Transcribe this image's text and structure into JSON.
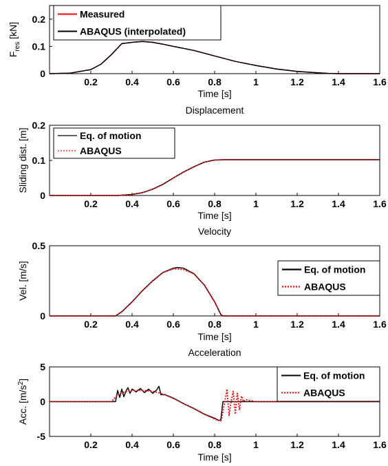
{
  "chart_data": [
    {
      "type": "line",
      "title": "",
      "xlabel": "Time [s]",
      "ylabel": "F_res [kN]",
      "ylabel_main": "F",
      "ylabel_sub": "res",
      "ylabel_unit": " [kN]",
      "xlim": [
        0,
        1.6
      ],
      "ylim": [
        0,
        0.25
      ],
      "xticks": [
        "0.2",
        "0.4",
        "0.6",
        "0.8",
        "1",
        "1.2",
        "1.4",
        "1.6"
      ],
      "yticks": [
        {
          "v": 0,
          "label": "0"
        },
        {
          "v": 0.1,
          "label": "0.1"
        },
        {
          "v": 0.2,
          "label": "0.2"
        }
      ],
      "grid": false,
      "legend_position": "top-left",
      "series": [
        {
          "name": "Measured",
          "color": "#ff0000",
          "style": "solid",
          "x": [
            0,
            0.1,
            0.2,
            0.25,
            0.3,
            0.35,
            0.4,
            0.45,
            0.5,
            0.55,
            0.6,
            0.7,
            0.8,
            0.9,
            1.0,
            1.1,
            1.2,
            1.3,
            1.35,
            1.4,
            1.6
          ],
          "y": [
            0,
            0.002,
            0.015,
            0.035,
            0.07,
            0.11,
            0.115,
            0.118,
            0.115,
            0.108,
            0.1,
            0.085,
            0.065,
            0.045,
            0.03,
            0.017,
            0.008,
            0.003,
            0.001,
            0,
            0
          ]
        },
        {
          "name": "ABAQUS (interpolated)",
          "color": "#000000",
          "style": "solid",
          "x": [
            0,
            0.1,
            0.2,
            0.25,
            0.3,
            0.35,
            0.4,
            0.45,
            0.5,
            0.55,
            0.6,
            0.7,
            0.8,
            0.9,
            1.0,
            1.1,
            1.2,
            1.3,
            1.35,
            1.4,
            1.6
          ],
          "y": [
            0,
            0.002,
            0.015,
            0.035,
            0.07,
            0.11,
            0.115,
            0.118,
            0.115,
            0.108,
            0.1,
            0.085,
            0.065,
            0.045,
            0.03,
            0.017,
            0.008,
            0.003,
            0.001,
            0,
            0
          ]
        }
      ]
    },
    {
      "type": "line",
      "title": "Displacement",
      "xlabel": "Time [s]",
      "ylabel": "Sliding dist. [m]",
      "xlim": [
        0,
        1.6
      ],
      "ylim": [
        0,
        0.2
      ],
      "xticks": [
        "0.2",
        "0.4",
        "0.6",
        "0.8",
        "1",
        "1.2",
        "1.4",
        "1.6"
      ],
      "yticks": [
        {
          "v": 0,
          "label": "0"
        },
        {
          "v": 0.1,
          "label": "0.1"
        },
        {
          "v": 0.2,
          "label": "0.2"
        }
      ],
      "grid": false,
      "legend_position": "top-left",
      "series": [
        {
          "name": "Eq. of motion",
          "color": "#000000",
          "style": "solid",
          "x": [
            0,
            0.33,
            0.4,
            0.45,
            0.5,
            0.55,
            0.6,
            0.65,
            0.7,
            0.75,
            0.8,
            0.85,
            1.0,
            1.2,
            1.4,
            1.6
          ],
          "y": [
            0,
            0,
            0.003,
            0.008,
            0.018,
            0.032,
            0.05,
            0.067,
            0.082,
            0.095,
            0.101,
            0.102,
            0.102,
            0.102,
            0.102,
            0.102
          ]
        },
        {
          "name": "ABAQUS",
          "color": "#ff0000",
          "style": "dotted",
          "x": [
            0,
            0.33,
            0.4,
            0.45,
            0.5,
            0.55,
            0.6,
            0.65,
            0.7,
            0.75,
            0.8,
            0.85,
            1.0,
            1.2,
            1.4,
            1.6
          ],
          "y": [
            0,
            0,
            0.003,
            0.008,
            0.018,
            0.032,
            0.05,
            0.067,
            0.082,
            0.095,
            0.101,
            0.102,
            0.102,
            0.102,
            0.102,
            0.102
          ]
        }
      ]
    },
    {
      "type": "line",
      "title": "Velocity",
      "xlabel": "Time [s]",
      "ylabel": "Vel. [m/s]",
      "xlim": [
        0,
        1.6
      ],
      "ylim": [
        0,
        0.5
      ],
      "xticks": [
        "0.2",
        "0.4",
        "0.6",
        "0.8",
        "1",
        "1.2",
        "1.4",
        "1.6"
      ],
      "yticks": [
        {
          "v": 0,
          "label": "0"
        },
        {
          "v": 0.5,
          "label": "0.5"
        }
      ],
      "grid": false,
      "legend_position": "right",
      "series": [
        {
          "name": "Eq. of motion",
          "color": "#000000",
          "style": "solid",
          "x": [
            0,
            0.32,
            0.35,
            0.4,
            0.45,
            0.5,
            0.55,
            0.6,
            0.62,
            0.65,
            0.7,
            0.75,
            0.8,
            0.83,
            0.84,
            1.0,
            1.6
          ],
          "y": [
            0,
            0,
            0.03,
            0.1,
            0.18,
            0.25,
            0.31,
            0.34,
            0.345,
            0.34,
            0.3,
            0.22,
            0.1,
            0.01,
            0,
            0,
            0
          ]
        },
        {
          "name": "ABAQUS",
          "color": "#ff0000",
          "style": "dotted",
          "x": [
            0,
            0.32,
            0.35,
            0.4,
            0.45,
            0.5,
            0.55,
            0.6,
            0.62,
            0.65,
            0.7,
            0.75,
            0.8,
            0.83,
            0.84,
            1.0,
            1.6
          ],
          "y": [
            0,
            0,
            0.03,
            0.1,
            0.18,
            0.25,
            0.31,
            0.335,
            0.335,
            0.33,
            0.3,
            0.22,
            0.1,
            0.01,
            0,
            0,
            0
          ]
        }
      ]
    },
    {
      "type": "line",
      "title": "Acceleration",
      "xlabel": "Time [s]",
      "ylabel": "Acc. [m/s²]",
      "ylabel_main": "Acc. [m/s",
      "ylabel_sup": "2",
      "ylabel_end": "]",
      "xlim": [
        0,
        1.6
      ],
      "ylim": [
        -5,
        5
      ],
      "xticks": [
        "0.2",
        "0.4",
        "0.6",
        "0.8",
        "1",
        "1.2",
        "1.4",
        "1.6"
      ],
      "yticks": [
        {
          "v": -5,
          "label": "-5"
        },
        {
          "v": 0,
          "label": "0"
        },
        {
          "v": 5,
          "label": "5"
        }
      ],
      "grid": false,
      "legend_position": "top-right",
      "series": [
        {
          "name": "Eq. of motion",
          "color": "#000000",
          "style": "solid",
          "x": [
            0,
            0.32,
            0.33,
            0.34,
            0.35,
            0.36,
            0.37,
            0.38,
            0.39,
            0.4,
            0.42,
            0.44,
            0.46,
            0.48,
            0.5,
            0.52,
            0.53,
            0.54,
            0.56,
            0.6,
            0.65,
            0.7,
            0.75,
            0.8,
            0.82,
            0.83,
            0.84,
            1.6
          ],
          "y": [
            0,
            0,
            1.6,
            0.6,
            1.8,
            0.7,
            1.5,
            2.0,
            1.2,
            1.8,
            1.4,
            1.9,
            1.3,
            1.8,
            1.2,
            1.7,
            2.2,
            1.0,
            1.0,
            0.5,
            -0.3,
            -1.0,
            -1.8,
            -2.4,
            -2.7,
            -2.6,
            0,
            0
          ]
        },
        {
          "name": "ABAQUS",
          "color": "#ff0000",
          "style": "dotted",
          "x": [
            0,
            0.3,
            0.33,
            0.35,
            0.4,
            0.45,
            0.5,
            0.55,
            0.6,
            0.65,
            0.7,
            0.75,
            0.8,
            0.83,
            0.84,
            0.86,
            0.87,
            0.88,
            0.89,
            0.9,
            0.91,
            0.92,
            0.93,
            0.94,
            0.95,
            1.0,
            1.6
          ],
          "y": [
            0,
            0,
            1.0,
            1.3,
            1.6,
            1.6,
            1.5,
            1.1,
            0.5,
            -0.3,
            -1.0,
            -1.8,
            -2.5,
            -2.8,
            -1.5,
            1.8,
            -2.0,
            0.0,
            1.5,
            -1.8,
            1.2,
            -1.2,
            0.8,
            0.0,
            0.3,
            0,
            0
          ]
        }
      ]
    }
  ]
}
